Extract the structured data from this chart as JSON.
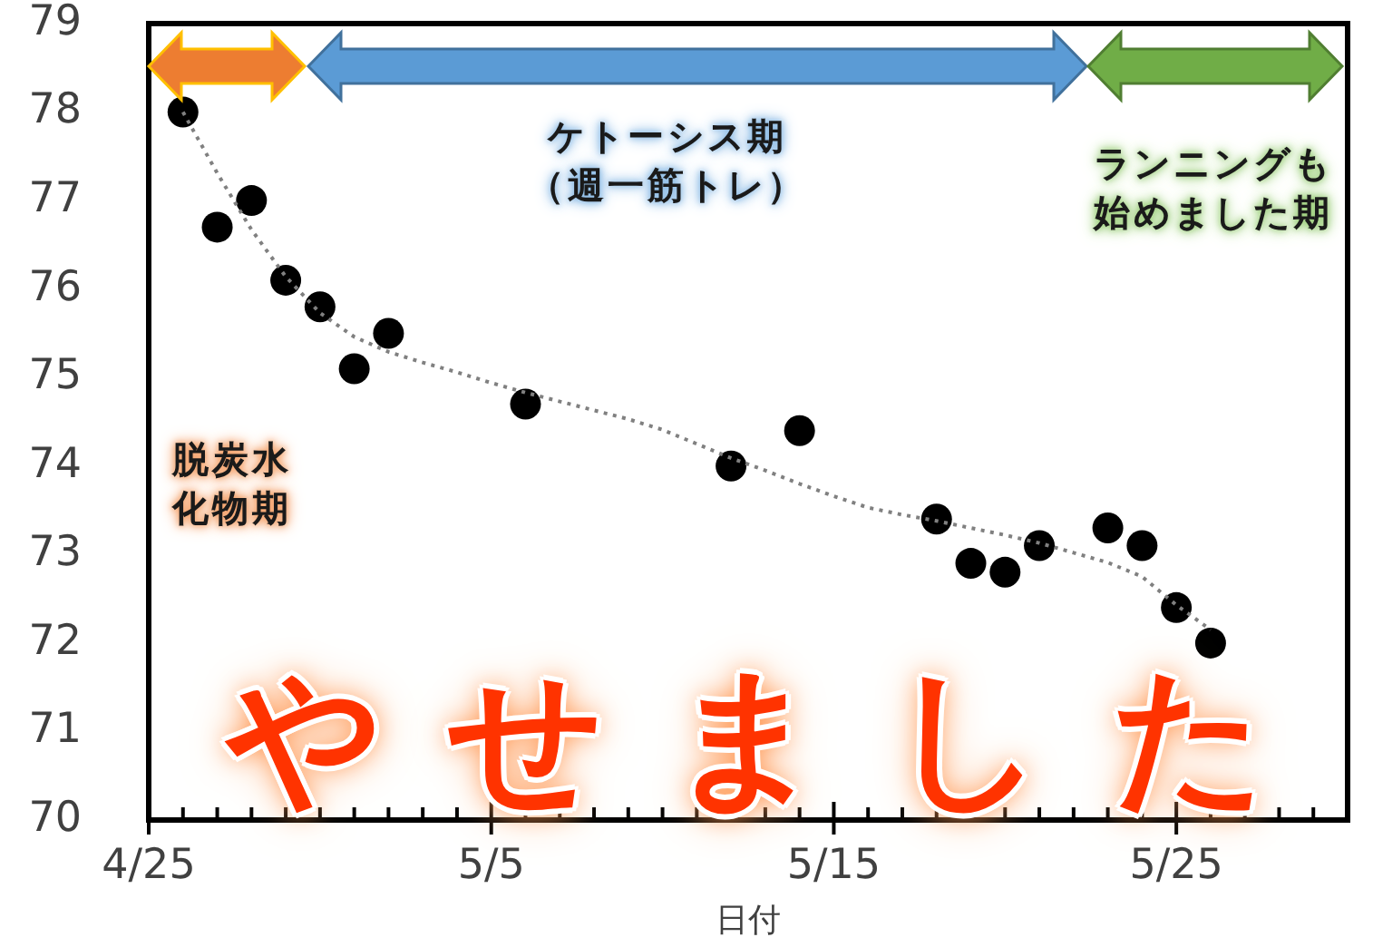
{
  "chart_data": {
    "type": "scatter",
    "xlabel": "日付",
    "x": [
      "--04-26",
      "--04-27",
      "--04-28",
      "--04-29",
      "--04-30",
      "--05-01",
      "--05-02",
      "--05-06",
      "--05-12",
      "--05-14",
      "--05-18",
      "--05-19",
      "--05-20",
      "--05-21",
      "--05-23",
      "--05-24",
      "--05-25",
      "--05-26"
    ],
    "series": [
      {
        "type": "scatter",
        "color": "#000000",
        "marker": "circle",
        "values": [
          78.0,
          76.7,
          77.0,
          76.1,
          75.8,
          75.1,
          75.5,
          74.7,
          74.0,
          74.4,
          73.4,
          72.9,
          72.8,
          73.1,
          73.3,
          73.1,
          72.4,
          72.0
        ]
      },
      {
        "type": "line",
        "color": "#808080",
        "marker": "none",
        "line_style": "dotted",
        "x": [
          "--04-26",
          "--04-27",
          "--04-28",
          "--04-29",
          "--04-30",
          "--05-01",
          "--05-02",
          "--05-03",
          "--05-04",
          "--05-05",
          "--05-06",
          "--05-07",
          "--05-08",
          "--05-09",
          "--05-10",
          "--05-11",
          "--05-12",
          "--05-13",
          "--05-14",
          "--05-15",
          "--05-16",
          "--05-17",
          "--05-18",
          "--05-19",
          "--05-20",
          "--05-21",
          "--05-22",
          "--05-23",
          "--05-24",
          "--05-25",
          "--05-26"
        ],
        "values": [
          78.0,
          77.31,
          76.67,
          76.14,
          75.73,
          75.46,
          75.29,
          75.17,
          75.06,
          74.94,
          74.83,
          74.73,
          74.63,
          74.53,
          74.41,
          74.25,
          74.09,
          73.95,
          73.8,
          73.66,
          73.53,
          73.45,
          73.38,
          73.3,
          73.22,
          73.13,
          73.02,
          72.91,
          72.75,
          72.43,
          72.15
        ]
      }
    ],
    "xlim": [
      "--04-25",
      "--05-30"
    ],
    "xticks": [
      {
        "value": "--04-25",
        "label": "4/25"
      },
      {
        "value": "--04-26",
        "label": null
      },
      {
        "value": "--04-27",
        "label": null
      },
      {
        "value": "--04-28",
        "label": null
      },
      {
        "value": "--04-29",
        "label": null
      },
      {
        "value": "--04-30",
        "label": null
      },
      {
        "value": "--05-01",
        "label": null
      },
      {
        "value": "--05-02",
        "label": null
      },
      {
        "value": "--05-03",
        "label": null
      },
      {
        "value": "--05-04",
        "label": null
      },
      {
        "value": "--05-05",
        "label": "5/5"
      },
      {
        "value": "--05-06",
        "label": null
      },
      {
        "value": "--05-07",
        "label": null
      },
      {
        "value": "--05-08",
        "label": null
      },
      {
        "value": "--05-09",
        "label": null
      },
      {
        "value": "--05-10",
        "label": null
      },
      {
        "value": "--05-11",
        "label": null
      },
      {
        "value": "--05-12",
        "label": null
      },
      {
        "value": "--05-13",
        "label": null
      },
      {
        "value": "--05-14",
        "label": null
      },
      {
        "value": "--05-15",
        "label": "5/15"
      },
      {
        "value": "--05-16",
        "label": null
      },
      {
        "value": "--05-17",
        "label": null
      },
      {
        "value": "--05-18",
        "label": null
      },
      {
        "value": "--05-19",
        "label": null
      },
      {
        "value": "--05-20",
        "label": null
      },
      {
        "value": "--05-21",
        "label": null
      },
      {
        "value": "--05-22",
        "label": null
      },
      {
        "value": "--05-23",
        "label": null
      },
      {
        "value": "--05-24",
        "label": null
      },
      {
        "value": "--05-25",
        "label": "5/25"
      },
      {
        "value": "--05-26",
        "label": null
      },
      {
        "value": "--05-27",
        "label": null
      },
      {
        "value": "--05-28",
        "label": null
      },
      {
        "value": "--05-29",
        "label": null
      }
    ],
    "ylim": [
      70,
      79
    ],
    "yticks": [
      70,
      71,
      72,
      73,
      74,
      75,
      76,
      77,
      78,
      79
    ],
    "annotations": [
      "脱炭水化物期",
      "ケトーシス期（週一筋トレ）",
      "ランニングも始めました期",
      "やせました"
    ]
  }
}
